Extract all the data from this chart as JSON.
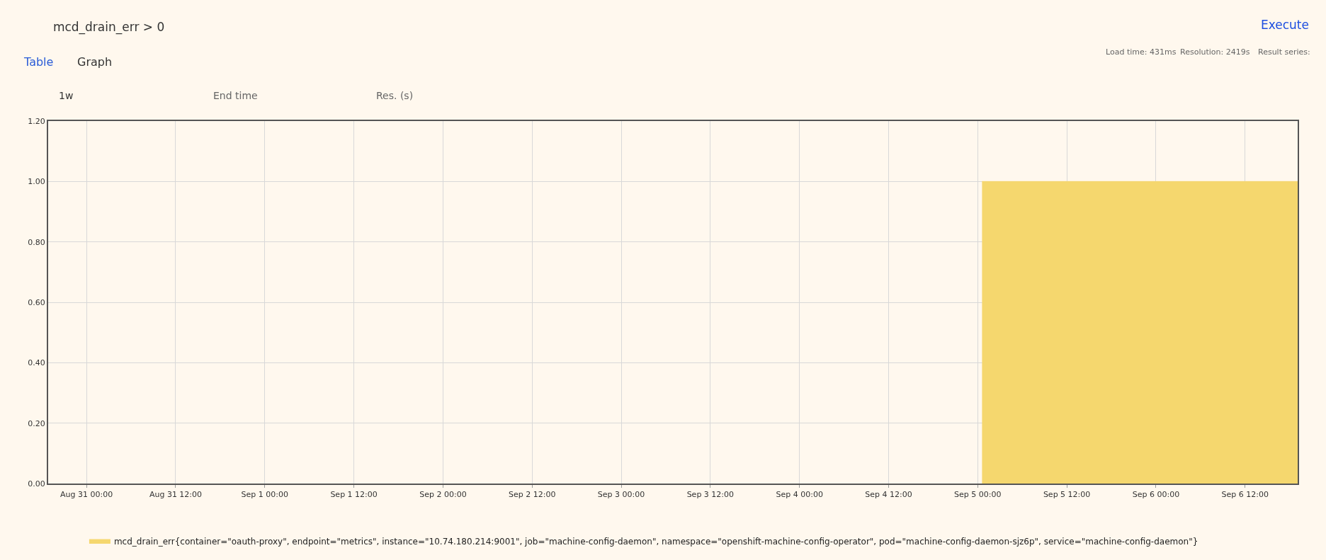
{
  "chart_data": {
    "type": "area",
    "title": "mcd_drain_err > 0",
    "annotations": [
      "Table",
      "Graph",
      "1w",
      "End time",
      "Res. (s)",
      "Execute",
      "Load time: 431ms",
      "Resolution: 2419s",
      "Result series:"
    ],
    "xlim": [
      "--08-30T18:50",
      "--09-06T19:05"
    ],
    "xticks": [
      {
        "value": "--08-31T00:00",
        "label": "Aug 31 00:00"
      },
      {
        "value": "--08-31T12:00",
        "label": "Aug 31 12:00"
      },
      {
        "value": "--09-01T00:00",
        "label": "Sep 1 00:00"
      },
      {
        "value": "--09-01T12:00",
        "label": "Sep 1 12:00"
      },
      {
        "value": "--09-02T00:00",
        "label": "Sep 2 00:00"
      },
      {
        "value": "--09-02T12:00",
        "label": "Sep 2 12:00"
      },
      {
        "value": "--09-03T00:00",
        "label": "Sep 3 00:00"
      },
      {
        "value": "--09-03T12:00",
        "label": "Sep 3 12:00"
      },
      {
        "value": "--09-04T00:00",
        "label": "Sep 4 00:00"
      },
      {
        "value": "--09-04T12:00",
        "label": "Sep 4 12:00"
      },
      {
        "value": "--09-05T00:00",
        "label": "Sep 5 00:00"
      },
      {
        "value": "--09-05T12:00",
        "label": "Sep 5 12:00"
      },
      {
        "value": "--09-06T00:00",
        "label": "Sep 6 00:00"
      },
      {
        "value": "--09-06T12:00",
        "label": "Sep 6 12:00"
      }
    ],
    "ylim": [
      0,
      1.2
    ],
    "yticks": [
      {
        "value": 0,
        "label": "0.00"
      },
      {
        "value": 0.2,
        "label": "0.20"
      },
      {
        "value": 0.4,
        "label": "0.40"
      },
      {
        "value": 0.6,
        "label": "0.60"
      },
      {
        "value": 0.8,
        "label": "0.80"
      },
      {
        "value": 1,
        "label": "1.00"
      },
      {
        "value": 1.2,
        "label": "1.20"
      }
    ],
    "grid": true,
    "legend": "bottom",
    "series": [
      {
        "name": "mcd_drain_err{container=\"oauth-proxy\", endpoint=\"metrics\", instance=\"10.74.180.214:9001\", job=\"machine-config-daemon\", namespace=\"openshift-machine-config-operator\", pod=\"machine-config-daemon-sjz6p\", service=\"machine-config-daemon\"}",
        "color": "#f5d76e",
        "x": [
          "--09-05T00:35",
          "--09-06T19:05"
        ],
        "values": [
          1,
          1
        ]
      }
    ]
  }
}
